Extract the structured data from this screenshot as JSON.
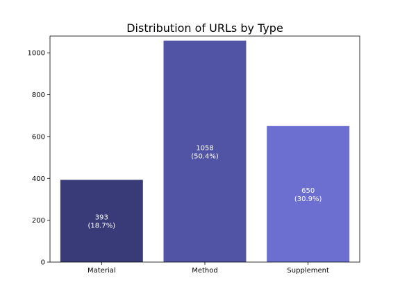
{
  "chart_data": {
    "type": "bar",
    "title": "Distribution of URLs by Type",
    "xlabel": "",
    "ylabel": "",
    "categories": [
      "Material",
      "Method",
      "Supplement"
    ],
    "values": [
      393,
      1058,
      650
    ],
    "value_labels": [
      "393\n(18.7%)",
      "1058\n(50.4%)",
      "650\n(30.9%)"
    ],
    "colors": [
      "#383b78",
      "#5154a5",
      "#6c6ed0"
    ],
    "ylim": [
      0,
      1080
    ],
    "yticks": [
      0,
      200,
      400,
      600,
      800,
      1000
    ],
    "grid": false,
    "legend": "none"
  }
}
